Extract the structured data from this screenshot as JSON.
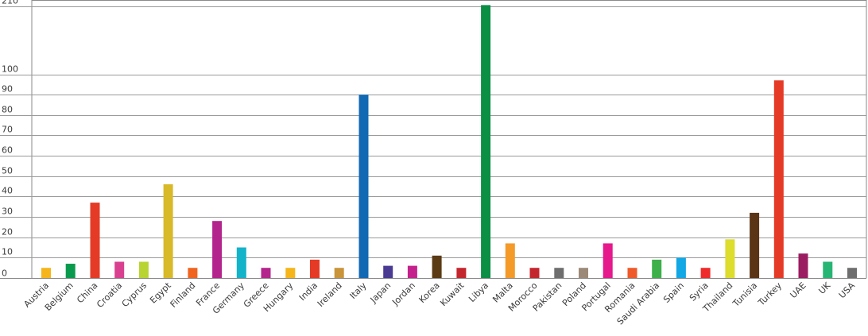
{
  "chart_data": {
    "type": "bar",
    "title": "",
    "xlabel": "",
    "ylabel": "",
    "y_ticks": [
      "0",
      "10",
      "20",
      "30",
      "40",
      "50",
      "60",
      "70",
      "80",
      "90",
      "100",
      "210"
    ],
    "y_tick_values": [
      0,
      10,
      20,
      30,
      40,
      50,
      60,
      70,
      80,
      90,
      100,
      210
    ],
    "y_axis_break": true,
    "ylim": [
      0,
      210
    ],
    "grid": true,
    "categories": [
      "Austria",
      "Belgium",
      "China",
      "Croatia",
      "Cyprus",
      "Egypt",
      "Finland",
      "France",
      "Germany",
      "Greece",
      "Hungary",
      "India",
      "Ireland",
      "Italy",
      "Japan",
      "Jordan",
      "Korea",
      "Kuwait",
      "Libya",
      "Malta",
      "Morocco",
      "Pakistan",
      "Poland",
      "Portugal",
      "Romania",
      "Saudi Arabia",
      "Spain",
      "Syria",
      "Thailand",
      "Tunisia",
      "Turkey",
      "UAE",
      "UK",
      "USA"
    ],
    "values": [
      5,
      7,
      37,
      8,
      8,
      46,
      5,
      28,
      15,
      5,
      5,
      9,
      5,
      90,
      6,
      6,
      11,
      5,
      212,
      17,
      5,
      5,
      5,
      17,
      5,
      9,
      10,
      5,
      19,
      32,
      97,
      12,
      8,
      5
    ],
    "colors": [
      "#f5b51b",
      "#0a9a4e",
      "#e53a26",
      "#d9408f",
      "#b7d433",
      "#d8b928",
      "#f06420",
      "#b4248d",
      "#13b3c9",
      "#b4248d",
      "#f5b51b",
      "#e53a26",
      "#c9943a",
      "#1169b3",
      "#4a3a91",
      "#c5218c",
      "#5b3a16",
      "#c4262e",
      "#0a8f45",
      "#f39a28",
      "#c4262e",
      "#6e6e6e",
      "#9c8a78",
      "#e5188c",
      "#ef5a2a",
      "#3db04a",
      "#12a7e5",
      "#ee2a2a",
      "#dddd2d",
      "#5b3416",
      "#e53a26",
      "#9b1c61",
      "#27b573",
      "#6e6e6e"
    ]
  }
}
